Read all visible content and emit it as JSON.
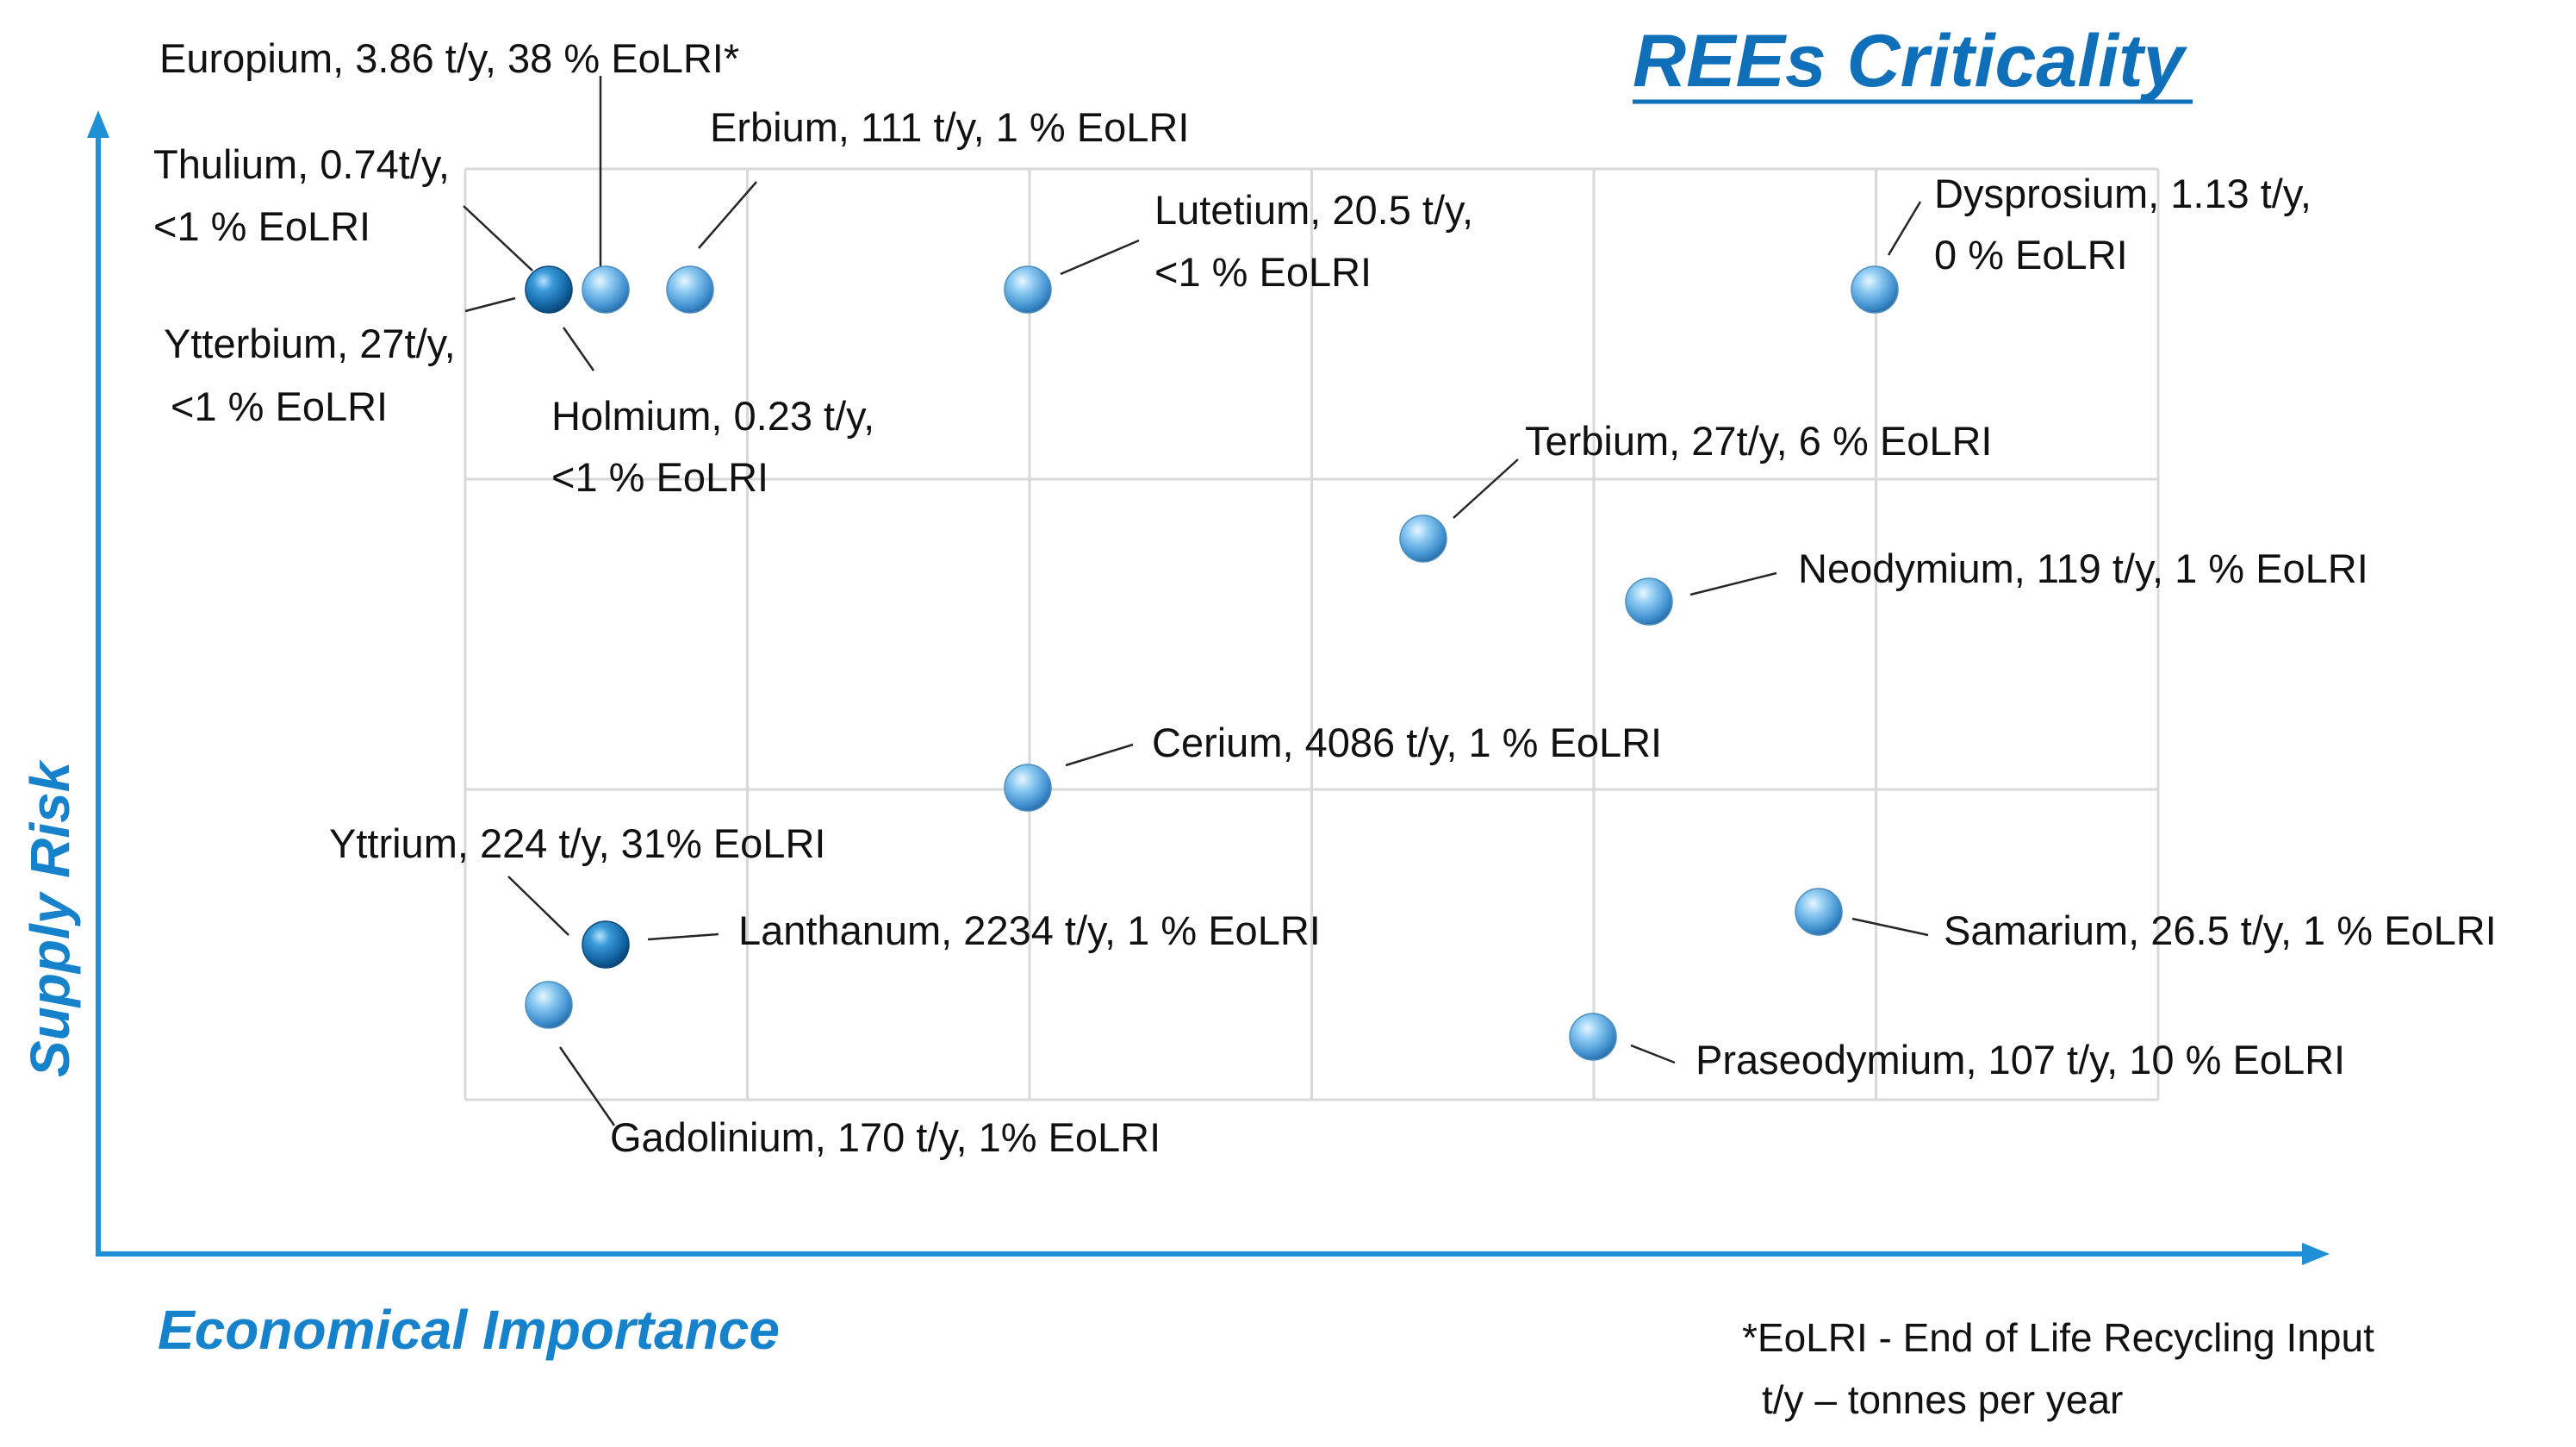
{
  "chart_data": {
    "type": "scatter",
    "title": "REEs Criticality",
    "xlabel": "Economical Importance",
    "ylabel": "Supply Risk",
    "xlim": [
      0,
      6
    ],
    "ylim": [
      0,
      3
    ],
    "grid": true,
    "legend_note": [
      "*EoLRI - End of Life Recycling Input",
      "t/y – tonnes per year"
    ],
    "points": [
      {
        "name": "Europium",
        "x": 0.5,
        "y": 2.6,
        "dark": false,
        "label_lines": [
          "Europium, 3.86 t/y, 38 % EoLRI*"
        ]
      },
      {
        "name": "Erbium",
        "x": 0.8,
        "y": 2.6,
        "dark": false,
        "label_lines": [
          "Erbium, 111 t/y, 1 % EoLRI"
        ]
      },
      {
        "name": "Thulium",
        "x": 0.3,
        "y": 2.6,
        "dark": true,
        "label_lines": [
          "Thulium, 0.74t/y,",
          "<1 % EoLRI"
        ]
      },
      {
        "name": "Ytterbium",
        "x": 0.3,
        "y": 2.6,
        "dark": true,
        "label_lines": [
          "Ytterbium, 27t/y,",
          " <1 % EoLRI"
        ]
      },
      {
        "name": "Holmium",
        "x": 0.3,
        "y": 2.6,
        "dark": true,
        "label_lines": [
          "Holmium, 0.23 t/y,",
          "<1 % EoLRI"
        ]
      },
      {
        "name": "Lutetium",
        "x": 2.0,
        "y": 2.6,
        "dark": false,
        "label_lines": [
          "Lutetium, 20.5 t/y,",
          "<1 % EoLRI"
        ]
      },
      {
        "name": "Dysprosium",
        "x": 5.0,
        "y": 2.6,
        "dark": false,
        "label_lines": [
          "Dysprosium, 1.13 t/y,",
          "0 % EoLRI"
        ]
      },
      {
        "name": "Terbium",
        "x": 3.4,
        "y": 1.8,
        "dark": false,
        "label_lines": [
          "Terbium, 27t/y,  6 % EoLRI"
        ]
      },
      {
        "name": "Neodymium",
        "x": 4.2,
        "y": 1.6,
        "dark": false,
        "label_lines": [
          "Neodymium, 119 t/y, 1 % EoLRI"
        ]
      },
      {
        "name": "Cerium",
        "x": 2.0,
        "y": 1.0,
        "dark": false,
        "label_lines": [
          "Cerium, 4086 t/y, 1 % EoLRI"
        ]
      },
      {
        "name": "Yttrium",
        "x": 0.5,
        "y": 0.5,
        "dark": true,
        "label_lines": [
          "Yttrium, 224 t/y, 31% EoLRI"
        ]
      },
      {
        "name": "Lanthanum",
        "x": 0.5,
        "y": 0.5,
        "dark": true,
        "label_lines": [
          "Lanthanum, 2234 t/y, 1 % EoLRI"
        ]
      },
      {
        "name": "Gadolinium",
        "x": 0.3,
        "y": 0.3,
        "dark": false,
        "label_lines": [
          "Gadolinium, 170 t/y, 1% EoLRI"
        ]
      },
      {
        "name": "Samarium",
        "x": 4.8,
        "y": 0.6,
        "dark": false,
        "label_lines": [
          "Samarium, 26.5 t/y, 1 % EoLRI"
        ]
      },
      {
        "name": "Praseodymium",
        "x": 4.0,
        "y": 0.2,
        "dark": false,
        "label_lines": [
          "Praseodymium, 107 t/y, 10 % EoLRI"
        ]
      }
    ]
  }
}
